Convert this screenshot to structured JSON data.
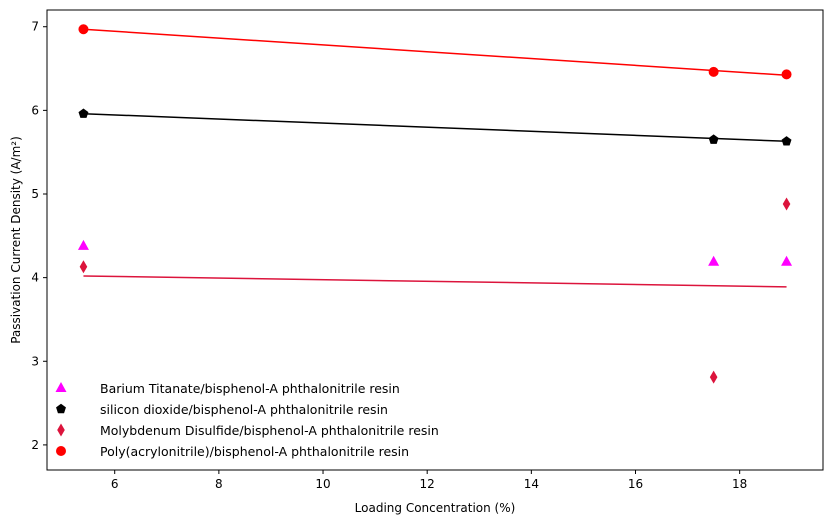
{
  "chart_data": {
    "type": "scatter",
    "xlabel": "Loading Concentration (%)",
    "ylabel": "Passivation Current Density (A/m²)",
    "xlim": [
      4.7,
      19.6
    ],
    "ylim": [
      1.7,
      7.2
    ],
    "x_ticks": [
      6,
      8,
      10,
      12,
      14,
      16,
      18
    ],
    "y_ticks": [
      2,
      3,
      4,
      5,
      6,
      7
    ],
    "grid": false,
    "legend_position": "lower-left",
    "series": [
      {
        "name": "Barium Titanate/bisphenol-A phthalonitrile resin",
        "marker": "triangle",
        "color": "#ff00ff",
        "points": [
          [
            5.4,
            4.38
          ],
          [
            17.5,
            4.19
          ],
          [
            18.9,
            4.19
          ]
        ],
        "trendline": null
      },
      {
        "name": "silicon dioxide/bisphenol-A phthalonitrile resin",
        "marker": "pentagon",
        "color": "#000000",
        "points": [
          [
            5.4,
            5.96
          ],
          [
            17.5,
            5.65
          ],
          [
            18.9,
            5.63
          ]
        ],
        "trendline": [
          [
            5.4,
            5.96
          ],
          [
            18.9,
            5.63
          ]
        ]
      },
      {
        "name": "Molybdenum Disulfide/bisphenol-A phthalonitrile resin",
        "marker": "thin-diamond",
        "color": "#dc143c",
        "points": [
          [
            5.4,
            4.13
          ],
          [
            17.5,
            2.81
          ],
          [
            18.9,
            4.88
          ]
        ],
        "trendline": [
          [
            5.4,
            4.02
          ],
          [
            18.9,
            3.89
          ]
        ]
      },
      {
        "name": "Poly(acrylonitrile)/bisphenol-A phthalonitrile resin",
        "marker": "circle",
        "color": "#ff0000",
        "points": [
          [
            5.4,
            6.97
          ],
          [
            17.5,
            6.46
          ],
          [
            18.9,
            6.43
          ]
        ],
        "trendline": [
          [
            5.4,
            6.97
          ],
          [
            18.9,
            6.42
          ]
        ]
      }
    ]
  }
}
